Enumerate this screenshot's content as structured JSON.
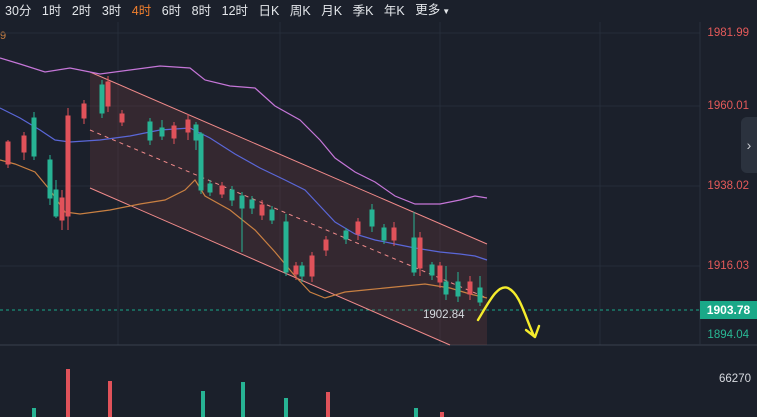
{
  "toolbar": {
    "intervals": [
      {
        "label": "30分",
        "active": false
      },
      {
        "label": "1时",
        "active": false
      },
      {
        "label": "2时",
        "active": false
      },
      {
        "label": "3时",
        "active": false
      },
      {
        "label": "4时",
        "active": true
      },
      {
        "label": "6时",
        "active": false
      },
      {
        "label": "8时",
        "active": false
      },
      {
        "label": "12时",
        "active": false
      },
      {
        "label": "日K",
        "active": false
      },
      {
        "label": "周K",
        "active": false
      },
      {
        "label": "月K",
        "active": false
      },
      {
        "label": "季K",
        "active": false
      },
      {
        "label": "年K",
        "active": false
      }
    ],
    "more_label": "更多"
  },
  "indicator_label": "9",
  "price_axis": [
    "1981.99",
    "1960.01",
    "1938.02",
    "1916.03"
  ],
  "current_price": "1903.78",
  "low_axis_label": "1894.04",
  "annotation_low": "1902.84",
  "volume_axis_label": "66270",
  "colors": {
    "background": "#1b202b",
    "up": "#e0525a",
    "down": "#27b394",
    "accent": "#f07f2e",
    "channel": "#f08a8a",
    "upper_band": "#c576d8",
    "mid_band": "#5a67d8",
    "lower_band": "#c98042",
    "annotation": "#f5ec2c"
  },
  "icons": {
    "side_button": "chevron-right-icon"
  }
}
